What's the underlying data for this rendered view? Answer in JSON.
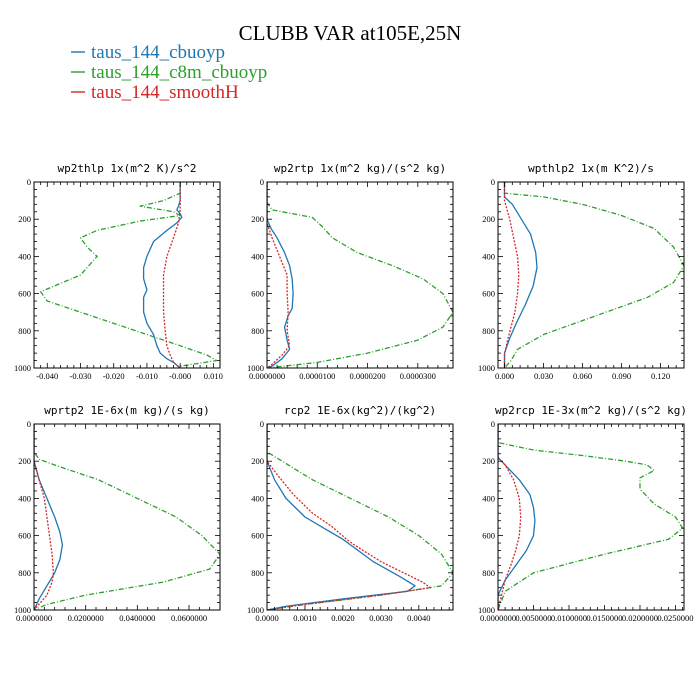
{
  "title": "CLUBB VAR at105E,25N",
  "legend": [
    {
      "label": "taus_144_cbuoyp",
      "color": "#1f77b4",
      "dash": "solid"
    },
    {
      "label": "taus_144_c8m_cbuoyp",
      "color": "#2ca02c",
      "dash": "dashed"
    },
    {
      "label": "taus_144_smoothH",
      "color": "#d62728",
      "dash": "dotted"
    }
  ],
  "chart_data": [
    {
      "type": "line",
      "title": "wp2thlp  1x(m^2 K)/s^2",
      "xlim": [
        -0.044,
        0.012
      ],
      "ylim": [
        1000,
        0
      ],
      "xticks": [
        -0.04,
        -0.03,
        -0.02,
        -0.01,
        0,
        0.01
      ],
      "xtick_labels": [
        "-0.040",
        "-0.030",
        "-0.020",
        "-0.010",
        "-0.000",
        "0.010"
      ],
      "yticks": [
        0,
        200,
        400,
        600,
        800,
        1000
      ],
      "ytick_labels": [
        "0",
        "200",
        "400",
        "600",
        "800",
        "1000"
      ],
      "series": [
        {
          "name": "taus_144_cbuoyp",
          "x": [
            0,
            0,
            -0.0005,
            -0.001,
            0,
            0.0005,
            -0.001,
            -0.004,
            -0.008,
            -0.01,
            -0.011,
            -0.011,
            -0.01,
            -0.011,
            -0.011,
            -0.01,
            -0.008,
            -0.007,
            -0.006,
            -0.004,
            -0.002,
            0
          ],
          "y": [
            0,
            100,
            130,
            150,
            170,
            190,
            220,
            260,
            320,
            400,
            460,
            520,
            580,
            620,
            700,
            760,
            820,
            880,
            920,
            950,
            970,
            1000
          ]
        },
        {
          "name": "taus_144_c8m_cbuoyp",
          "x": [
            0,
            0,
            -0.005,
            -0.012,
            -0.002,
            0,
            -0.012,
            -0.025,
            -0.03,
            -0.028,
            -0.025,
            -0.03,
            -0.042,
            -0.04,
            -0.03,
            -0.02,
            -0.01,
            0,
            0.008,
            0.011,
            0,
            0
          ],
          "y": [
            0,
            60,
            100,
            130,
            160,
            180,
            210,
            260,
            300,
            350,
            400,
            500,
            590,
            640,
            700,
            760,
            820,
            880,
            930,
            960,
            990,
            1000
          ]
        },
        {
          "name": "taus_144_smoothH",
          "x": [
            0,
            0,
            -0.0005,
            -0.002,
            -0.004,
            -0.005,
            -0.005,
            -0.005,
            -0.0045,
            -0.004,
            -0.003,
            -0.002,
            0
          ],
          "y": [
            0,
            150,
            220,
            300,
            400,
            500,
            600,
            700,
            800,
            880,
            930,
            970,
            1000
          ]
        }
      ]
    },
    {
      "type": "line",
      "title": "wp2rtp  1x(m^2 kg)/(s^2 kg)",
      "xlim": [
        0,
        3.7e-05
      ],
      "ylim": [
        1000,
        0
      ],
      "xticks": [
        0,
        1e-05,
        2e-05,
        3e-05
      ],
      "xtick_labels": [
        "0.0000000",
        "0.0000100",
        "0.0000200",
        "0.0000300"
      ],
      "yticks": [
        0,
        200,
        400,
        600,
        800,
        1000
      ],
      "ytick_labels": [
        "0",
        "200",
        "400",
        "600",
        "800",
        "1000"
      ],
      "series": [
        {
          "name": "taus_144_cbuoyp",
          "x": [
            0,
            0,
            8e-07,
            2e-06,
            3.5e-06,
            4.5e-06,
            5e-06,
            5.2e-06,
            5e-06,
            4.2e-06,
            3.5e-06,
            4e-06,
            4.5e-06,
            3e-06,
            1e-06,
            0
          ],
          "y": [
            0,
            200,
            250,
            300,
            380,
            450,
            520,
            600,
            680,
            720,
            780,
            850,
            900,
            950,
            990,
            1000
          ]
        },
        {
          "name": "taus_144_c8m_cbuoyp",
          "x": [
            0,
            0,
            1e-06,
            9e-06,
            1.1e-05,
            1.3e-05,
            1.8e-05,
            2.5e-05,
            3.1e-05,
            3.5e-05,
            3.7e-05,
            3.5e-05,
            3e-05,
            2e-05,
            1e-05,
            0
          ],
          "y": [
            0,
            110,
            150,
            190,
            240,
            300,
            380,
            450,
            520,
            600,
            700,
            780,
            850,
            920,
            970,
            1000
          ]
        },
        {
          "name": "taus_144_smoothH",
          "x": [
            0,
            0,
            1e-06,
            2.5e-06,
            4e-06,
            4e-06,
            4.2e-06,
            4e-06,
            4.5e-06,
            3e-06,
            1e-06,
            0
          ],
          "y": [
            0,
            220,
            300,
            400,
            500,
            600,
            700,
            800,
            880,
            930,
            980,
            1000
          ]
        }
      ]
    },
    {
      "type": "line",
      "title": "wpthlp2  1x(m K^2)/s",
      "xlim": [
        -0.005,
        0.138
      ],
      "ylim": [
        1000,
        0
      ],
      "xticks": [
        0,
        0.03,
        0.06,
        0.09,
        0.12
      ],
      "xtick_labels": [
        "0.000",
        "0.030",
        "0.060",
        "0.090",
        "0.120"
      ],
      "yticks": [
        0,
        200,
        400,
        600,
        800,
        1000
      ],
      "ytick_labels": [
        "0",
        "200",
        "400",
        "600",
        "800",
        "1000"
      ],
      "series": [
        {
          "name": "taus_144_cbuoyp",
          "x": [
            0,
            0,
            0.006,
            0.013,
            0.02,
            0.024,
            0.025,
            0.022,
            0.016,
            0.009,
            0.004,
            0,
            0
          ],
          "y": [
            0,
            80,
            120,
            200,
            280,
            380,
            460,
            560,
            660,
            760,
            840,
            920,
            1000
          ]
        },
        {
          "name": "taus_144_c8m_cbuoyp",
          "x": [
            0,
            0,
            0.03,
            0.06,
            0.09,
            0.115,
            0.13,
            0.138,
            0.13,
            0.11,
            0.07,
            0.03,
            0.01,
            0.005,
            0
          ],
          "y": [
            0,
            60,
            80,
            120,
            180,
            250,
            350,
            450,
            540,
            620,
            720,
            820,
            900,
            960,
            1000
          ]
        },
        {
          "name": "taus_144_smoothH",
          "x": [
            0,
            0,
            0.004,
            0.007,
            0.01,
            0.011,
            0.01,
            0.008,
            0.005,
            0.002,
            0,
            0
          ],
          "y": [
            0,
            100,
            200,
            300,
            400,
            500,
            600,
            700,
            780,
            860,
            930,
            1000
          ]
        }
      ]
    },
    {
      "type": "line",
      "title": "wprtp2  1E-6x(m kg)/(s kg)",
      "xlim": [
        0,
        0.072
      ],
      "ylim": [
        1000,
        0
      ],
      "xticks": [
        0,
        0.02,
        0.04,
        0.06
      ],
      "xtick_labels": [
        "0.0000000",
        "0.0200000",
        "0.0400000",
        "0.0600000"
      ],
      "yticks": [
        0,
        200,
        400,
        600,
        800,
        1000
      ],
      "ytick_labels": [
        "0",
        "200",
        "400",
        "600",
        "800",
        "1000"
      ],
      "series": [
        {
          "name": "taus_144_cbuoyp",
          "x": [
            0,
            0,
            0.002,
            0.005,
            0.008,
            0.01,
            0.011,
            0.01,
            0.008,
            0.005,
            0.002,
            0
          ],
          "y": [
            0,
            200,
            300,
            400,
            500,
            580,
            650,
            730,
            800,
            870,
            940,
            1000
          ]
        },
        {
          "name": "taus_144_c8m_cbuoyp",
          "x": [
            0,
            0,
            0.002,
            0.01,
            0.025,
            0.04,
            0.055,
            0.065,
            0.072,
            0.068,
            0.05,
            0.02,
            0.005,
            0
          ],
          "y": [
            0,
            150,
            190,
            230,
            300,
            400,
            500,
            600,
            700,
            780,
            850,
            920,
            970,
            1000
          ]
        },
        {
          "name": "taus_144_smoothH",
          "x": [
            0,
            0,
            0.002,
            0.004,
            0.005,
            0.006,
            0.007,
            0.0075,
            0.007,
            0.005,
            0
          ],
          "y": [
            0,
            200,
            300,
            400,
            500,
            600,
            700,
            800,
            850,
            920,
            1000
          ]
        }
      ]
    },
    {
      "type": "line",
      "title": "rcp2  1E-6x(kg^2)/(kg^2)",
      "xlim": [
        0,
        0.0049
      ],
      "ylim": [
        1000,
        0
      ],
      "xticks": [
        0,
        0.001,
        0.002,
        0.003,
        0.004
      ],
      "xtick_labels": [
        "0.0000",
        "0.0010",
        "0.0020",
        "0.0030",
        "0.0040"
      ],
      "yticks": [
        0,
        200,
        400,
        600,
        800,
        1000
      ],
      "ytick_labels": [
        "0",
        "200",
        "400",
        "600",
        "800",
        "1000"
      ],
      "series": [
        {
          "name": "taus_144_cbuoyp",
          "x": [
            0,
            0,
            0.0002,
            0.0005,
            0.001,
            0.0015,
            0.002,
            0.0022,
            0.0028,
            0.0035,
            0.0039,
            0.0037,
            0.002,
            0.0005,
            0
          ],
          "y": [
            0,
            200,
            300,
            400,
            500,
            560,
            620,
            650,
            740,
            820,
            870,
            900,
            940,
            980,
            1000
          ]
        },
        {
          "name": "taus_144_c8m_cbuoyp",
          "x": [
            0,
            0,
            0.0004,
            0.0012,
            0.0022,
            0.0032,
            0.004,
            0.0046,
            0.0049,
            0.0046,
            0.003,
            0.001,
            0
          ],
          "y": [
            0,
            150,
            200,
            300,
            400,
            500,
            600,
            700,
            800,
            870,
            920,
            970,
            1000
          ]
        },
        {
          "name": "taus_144_smoothH",
          "x": [
            0,
            0,
            0.0003,
            0.0007,
            0.0012,
            0.0017,
            0.0021,
            0.0023,
            0.003,
            0.0037,
            0.0041,
            0.0043,
            0.003,
            0.001,
            0
          ],
          "y": [
            0,
            200,
            280,
            380,
            480,
            550,
            620,
            650,
            740,
            810,
            850,
            880,
            920,
            970,
            1000
          ]
        }
      ]
    },
    {
      "type": "line",
      "title": "wp2rcp  1E-3x(m^2 kg)/(s^2 kg)",
      "xlim": [
        0,
        0.0262
      ],
      "ylim": [
        1000,
        0
      ],
      "xticks": [
        0,
        0.005,
        0.01,
        0.015,
        0.02,
        0.025
      ],
      "xtick_labels": [
        "0.0000000",
        "0.0050000",
        "0.0100000",
        "0.0150000",
        "0.0200000",
        "0.0250000"
      ],
      "yticks": [
        0,
        200,
        400,
        600,
        800,
        1000
      ],
      "ytick_labels": [
        "0",
        "200",
        "400",
        "600",
        "800",
        "1000"
      ],
      "series": [
        {
          "name": "taus_144_cbuoyp",
          "x": [
            0,
            0,
            0.001,
            0.003,
            0.0045,
            0.005,
            0.0052,
            0.005,
            0.004,
            0.0025,
            0.001,
            0,
            0
          ],
          "y": [
            0,
            180,
            220,
            300,
            380,
            450,
            520,
            600,
            680,
            760,
            840,
            920,
            1000
          ]
        },
        {
          "name": "taus_144_c8m_cbuoyp",
          "x": [
            0,
            0,
            0.005,
            0.012,
            0.018,
            0.021,
            0.022,
            0.02,
            0.02,
            0.022,
            0.025,
            0.026,
            0.024,
            0.015,
            0.005,
            0.001,
            0
          ],
          "y": [
            0,
            100,
            140,
            170,
            200,
            220,
            250,
            290,
            350,
            430,
            500,
            560,
            620,
            700,
            800,
            900,
            1000
          ]
        },
        {
          "name": "taus_144_smoothH",
          "x": [
            0,
            0,
            0.001,
            0.0022,
            0.003,
            0.0032,
            0.003,
            0.0025,
            0.0018,
            0.001,
            0
          ],
          "y": [
            0,
            180,
            220,
            300,
            400,
            500,
            600,
            680,
            760,
            840,
            1000
          ]
        }
      ]
    }
  ]
}
